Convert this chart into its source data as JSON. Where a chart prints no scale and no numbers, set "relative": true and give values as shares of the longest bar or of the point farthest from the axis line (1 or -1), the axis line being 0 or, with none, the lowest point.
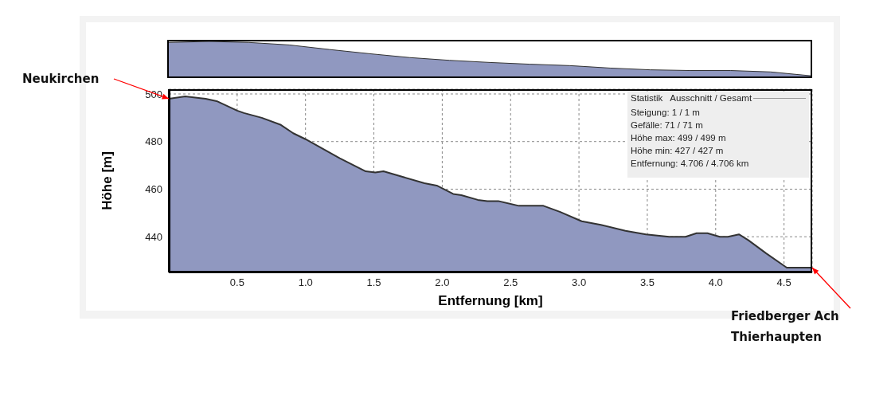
{
  "chart_data": [
    {
      "type": "area",
      "relative": true,
      "categories": [
        null,
        null,
        null,
        null,
        null,
        null,
        null,
        null,
        null,
        null,
        null,
        null,
        null,
        null,
        null,
        null,
        null
      ],
      "series": [
        {
          "color": "#9098c0",
          "values": [
            0.97,
            1,
            0.97,
            0.9,
            0.77,
            0.65,
            0.54,
            0.46,
            0.4,
            0.35,
            0.31,
            0.24,
            0.19,
            0.17,
            0.17,
            0.13,
            0.02
          ]
        }
      ],
      "tick_labels": false
    },
    {
      "type": "area",
      "xlabel": "Entfernung [km]",
      "ylabel": "Höhe [m]",
      "series": [
        {
          "color": "#9098c0",
          "x": [
            0,
            0.12,
            0.27,
            0.35,
            0.5,
            0.55,
            0.68,
            0.82,
            0.91,
            1.0,
            1.25,
            1.44,
            1.51,
            1.57,
            1.72,
            1.87,
            1.96,
            2.08,
            2.14,
            2.26,
            2.33,
            2.41,
            2.56,
            2.74,
            2.86,
            3.02,
            3.16,
            3.34,
            3.49,
            3.66,
            3.78,
            3.86,
            3.94,
            4.03,
            4.09,
            4.17,
            4.24,
            4.37,
            4.52,
            4.706
          ],
          "values": [
            498,
            499,
            498,
            497,
            493,
            492,
            490,
            487,
            483.5,
            481,
            473,
            467.5,
            467,
            467.5,
            465,
            462.5,
            461.5,
            458,
            457.5,
            455.5,
            455,
            455,
            453,
            453,
            450.5,
            446.5,
            445,
            442.5,
            441,
            440,
            440,
            441.5,
            441.5,
            440,
            440,
            441,
            438.5,
            433,
            427,
            427
          ]
        }
      ],
      "xlim": [
        0,
        4.706
      ],
      "xticks": [
        0.5,
        {
          "value": 1,
          "label": "1.0"
        },
        1.5,
        {
          "value": 2,
          "label": "2.0"
        },
        2.5,
        {
          "value": 3,
          "label": "3.0"
        },
        3.5,
        {
          "value": 4,
          "label": "4.0"
        },
        4.5
      ],
      "ylim": [
        425,
        502
      ],
      "yticks": [
        440,
        460,
        480,
        500
      ],
      "grid": true,
      "annotations": [
        "Statistik   Ausschnitt / Gesamt",
        "Steigung: 1 / 1 m",
        "Gefälle: 71 / 71 m",
        "Höhe max: 499 / 499 m",
        "Höhe min: 427 / 427 m",
        "Entfernung: 4.706 / 4.706 km",
        {
          "text": "Neukirchen",
          "x": 0,
          "y": 498
        },
        {
          "text": "Friedberger Ach\nThierhaupten",
          "x": 4.706,
          "y": 427
        }
      ]
    }
  ]
}
